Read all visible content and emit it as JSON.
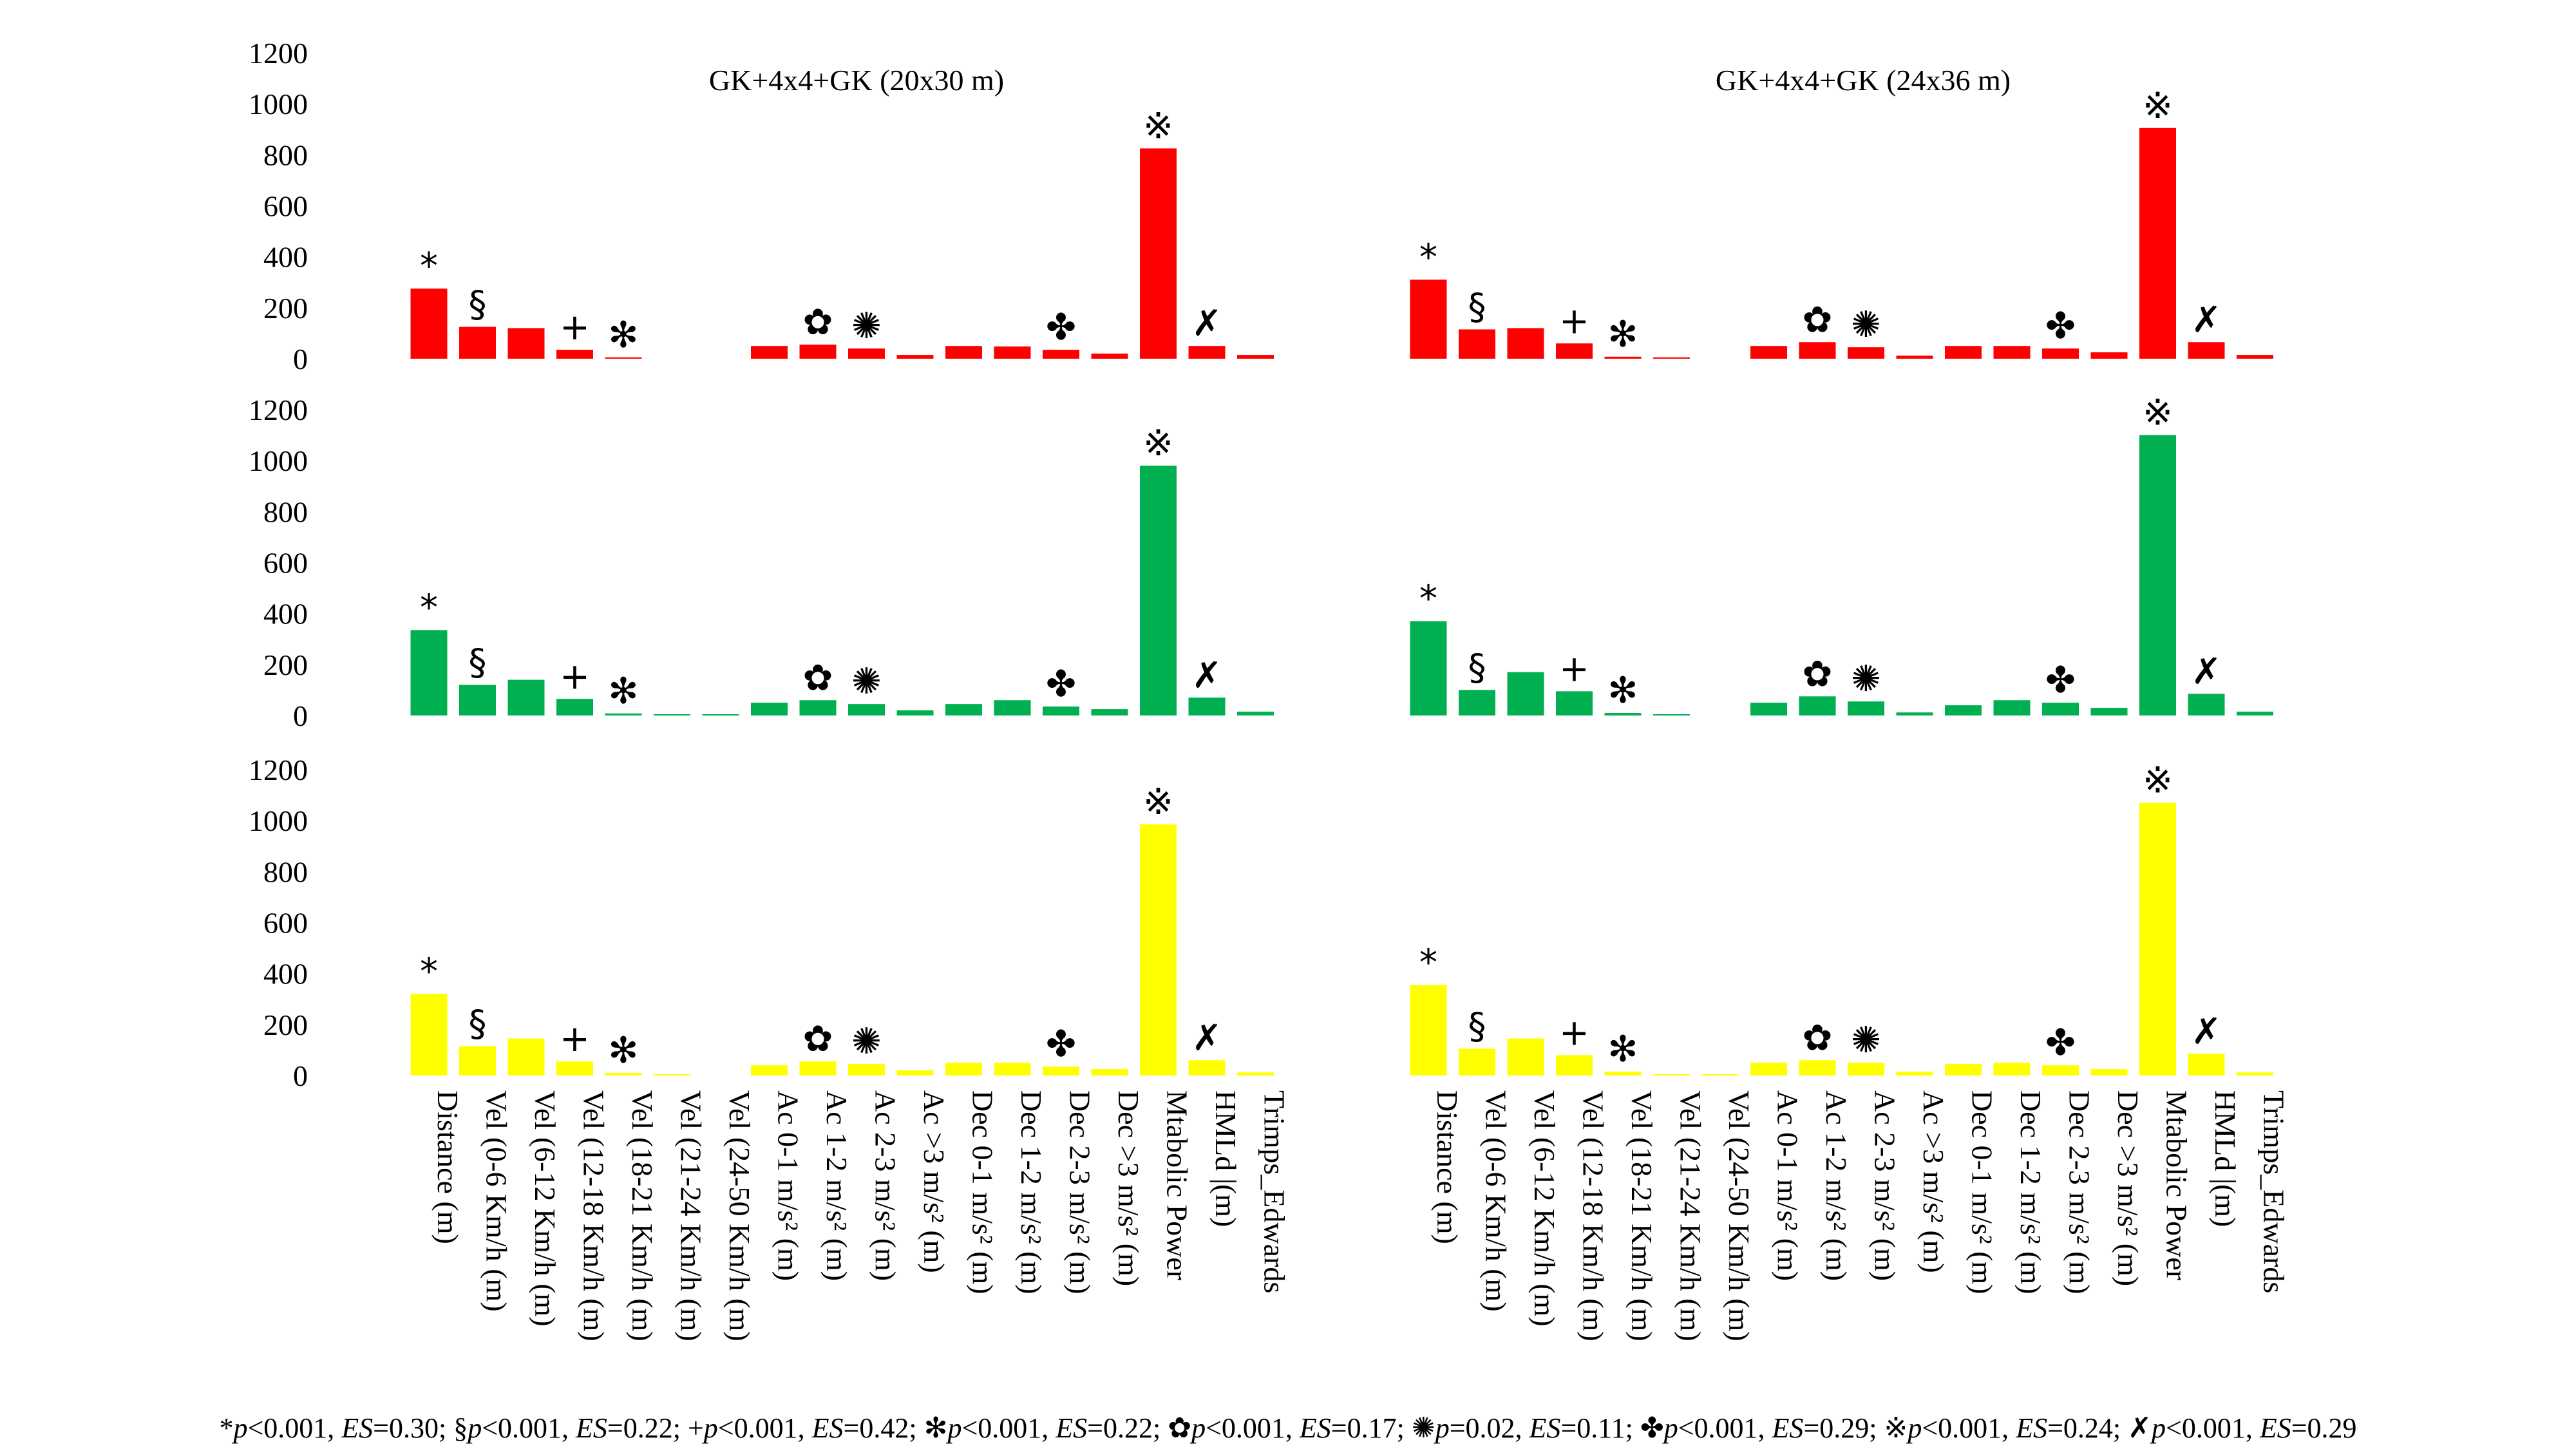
{
  "chart_data": {
    "type": "bar",
    "title_left": "GK+4x4+GK (20x30 m)",
    "title_right": "GK+4x4+GK (24x36 m)",
    "ylim": [
      0,
      1200
    ],
    "yticks": [
      "0",
      "200",
      "400",
      "600",
      "800",
      "1000",
      "1200"
    ],
    "categories": [
      "Distance (m)",
      "Vel (0-6 Km/h (m)",
      "Vel (6-12 Km/h (m)",
      "Vel (12-18 Km/h (m)",
      "Vel (18-21 Km/h (m)",
      "Vel (21-24 Km/h (m)",
      "Vel (24-50 Km/h (m)",
      "Ac 0-1 m/s² (m)",
      "Ac 1-2 m/s² (m)",
      "Ac 2-3 m/s² (m)",
      "Ac >3 m/s² (m)",
      "Dec 0-1 m/s² (m)",
      "Dec 1-2 m/s² (m)",
      "Dec 2-3 m/s² (m)",
      "Dec >3 m/s² (m)",
      "Mtabolic Power",
      "HMLd |(m)",
      "Trimps_Edwards"
    ],
    "marker_symbols": [
      "*",
      "§",
      "+",
      "✻",
      "✿",
      "✺",
      "✤",
      "※",
      "✗"
    ],
    "marker_category_index": [
      0,
      1,
      3,
      4,
      8,
      9,
      13,
      15,
      16
    ],
    "series": [
      {
        "name": "row1-left",
        "color": "#ff0000",
        "values": [
          275,
          125,
          120,
          35,
          5,
          0,
          0,
          50,
          55,
          40,
          15,
          50,
          48,
          35,
          20,
          825,
          50,
          15
        ]
      },
      {
        "name": "row1-right",
        "color": "#ff0000",
        "values": [
          310,
          115,
          120,
          60,
          8,
          3,
          0,
          50,
          65,
          45,
          12,
          50,
          50,
          40,
          25,
          905,
          65,
          15
        ]
      },
      {
        "name": "row2-left",
        "color": "#00b050",
        "values": [
          335,
          120,
          140,
          65,
          8,
          3,
          3,
          50,
          60,
          45,
          20,
          45,
          60,
          35,
          25,
          980,
          70,
          15
        ]
      },
      {
        "name": "row2-right",
        "color": "#00b050",
        "values": [
          370,
          100,
          170,
          95,
          10,
          3,
          0,
          50,
          75,
          55,
          12,
          40,
          60,
          50,
          30,
          1100,
          85,
          15
        ]
      },
      {
        "name": "row3-left",
        "color": "#ffff00",
        "values": [
          320,
          115,
          145,
          55,
          10,
          3,
          0,
          40,
          55,
          45,
          20,
          50,
          50,
          35,
          25,
          985,
          60,
          12
        ]
      },
      {
        "name": "row3-right",
        "color": "#ffff00",
        "values": [
          355,
          105,
          145,
          80,
          15,
          5,
          3,
          50,
          60,
          50,
          15,
          45,
          50,
          40,
          25,
          1070,
          85,
          12
        ]
      }
    ]
  },
  "footnote": [
    {
      "pre": "*",
      "p_op": "<0.001",
      "es": "=0.30"
    },
    {
      "pre": "§",
      "p_op": "<0.001",
      "es": "=0.22"
    },
    {
      "pre": "+",
      "p_op": "<0.001",
      "es": "=0.42"
    },
    {
      "pre": "✻",
      "p_op": "<0.001",
      "es": "=0.22"
    },
    {
      "pre": "✿",
      "p_op": "<0.001",
      "es": "=0.17"
    },
    {
      "pre": "✺",
      "p_op": "=0.02",
      "es": "=0.11"
    },
    {
      "pre": "✤",
      "p_op": "<0.001",
      "es": "=0.29"
    },
    {
      "pre": "※",
      "p_op": "<0.001",
      "es": "=0.24"
    },
    {
      "pre": "✗",
      "p_op": "<0.001",
      "es": "=0.29"
    }
  ],
  "footnote_labels": {
    "p": "p",
    "es": "ES"
  }
}
